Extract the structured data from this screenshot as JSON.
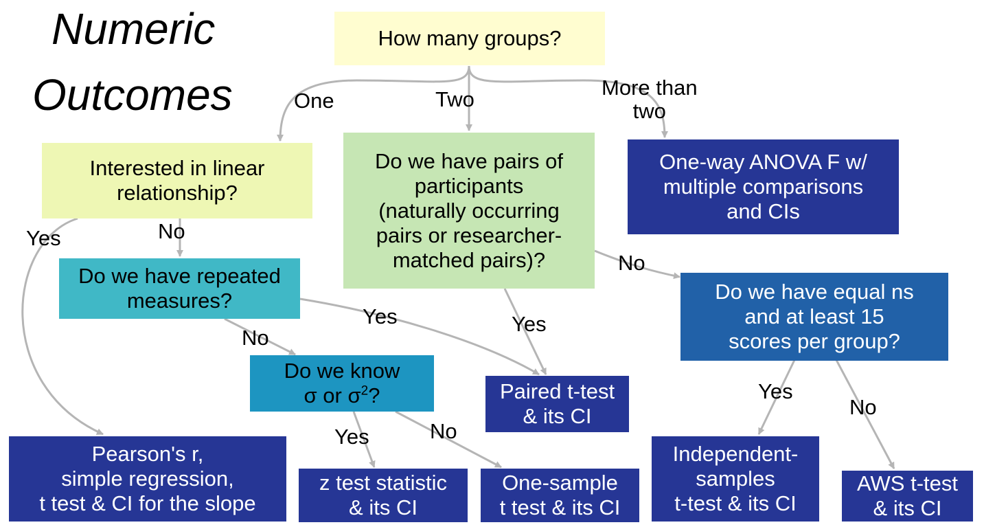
{
  "title": {
    "line1": "Numeric",
    "line2": "Outcomes"
  },
  "colors": {
    "arrow": "#b5b5b5",
    "root": "#fffdd0",
    "linear": "#eef7b4",
    "pairs": "#c6e6b4",
    "repeated": "#40b8c6",
    "sigma": "#1d95c1",
    "equal_ns": "#2161a8",
    "result": "#263695"
  },
  "nodes": {
    "root": {
      "lines": [
        "How many groups?"
      ]
    },
    "linear": {
      "lines": [
        "Interested in linear",
        "relationship?"
      ]
    },
    "pairs": {
      "lines": [
        "Do we have pairs of",
        "participants",
        "(naturally occurring",
        "pairs or researcher-",
        "matched pairs)?"
      ]
    },
    "anova": {
      "lines": [
        "One-way ANOVA F w/",
        "multiple comparisons",
        "and CIs"
      ]
    },
    "repeated": {
      "lines": [
        "Do we have repeated",
        "measures?"
      ]
    },
    "equal_ns": {
      "lines": [
        "Do we have equal ns",
        "and at least 15",
        "scores per group?"
      ]
    },
    "sigma": {
      "line1": "Do we know",
      "line2_prefix": "σ or σ",
      "line2_sup": "2",
      "line2_suffix": "?"
    },
    "paired": {
      "lines": [
        "Paired t-test",
        "& its CI"
      ]
    },
    "pearson": {
      "lines": [
        "Pearson's r,",
        "simple regression,",
        "t test & CI for the slope"
      ]
    },
    "ztest": {
      "lines": [
        "z test statistic",
        "& its CI"
      ]
    },
    "onesample": {
      "lines": [
        "One-sample",
        "t test & its CI"
      ]
    },
    "independent": {
      "lines": [
        "Independent-",
        "samples",
        "t-test & its CI"
      ]
    },
    "aws": {
      "lines": [
        "AWS t-test",
        "& its CI"
      ]
    }
  },
  "edge_labels": {
    "one": "One",
    "two": "Two",
    "more_than_two": [
      "More than",
      "two"
    ],
    "linear_yes": "Yes",
    "linear_no": "No",
    "pairs_no": "No",
    "pairs_yes": "Yes",
    "repeated_yes": "Yes",
    "repeated_no": "No",
    "equal_yes": "Yes",
    "equal_no": "No",
    "sigma_yes": "Yes",
    "sigma_no": "No"
  }
}
